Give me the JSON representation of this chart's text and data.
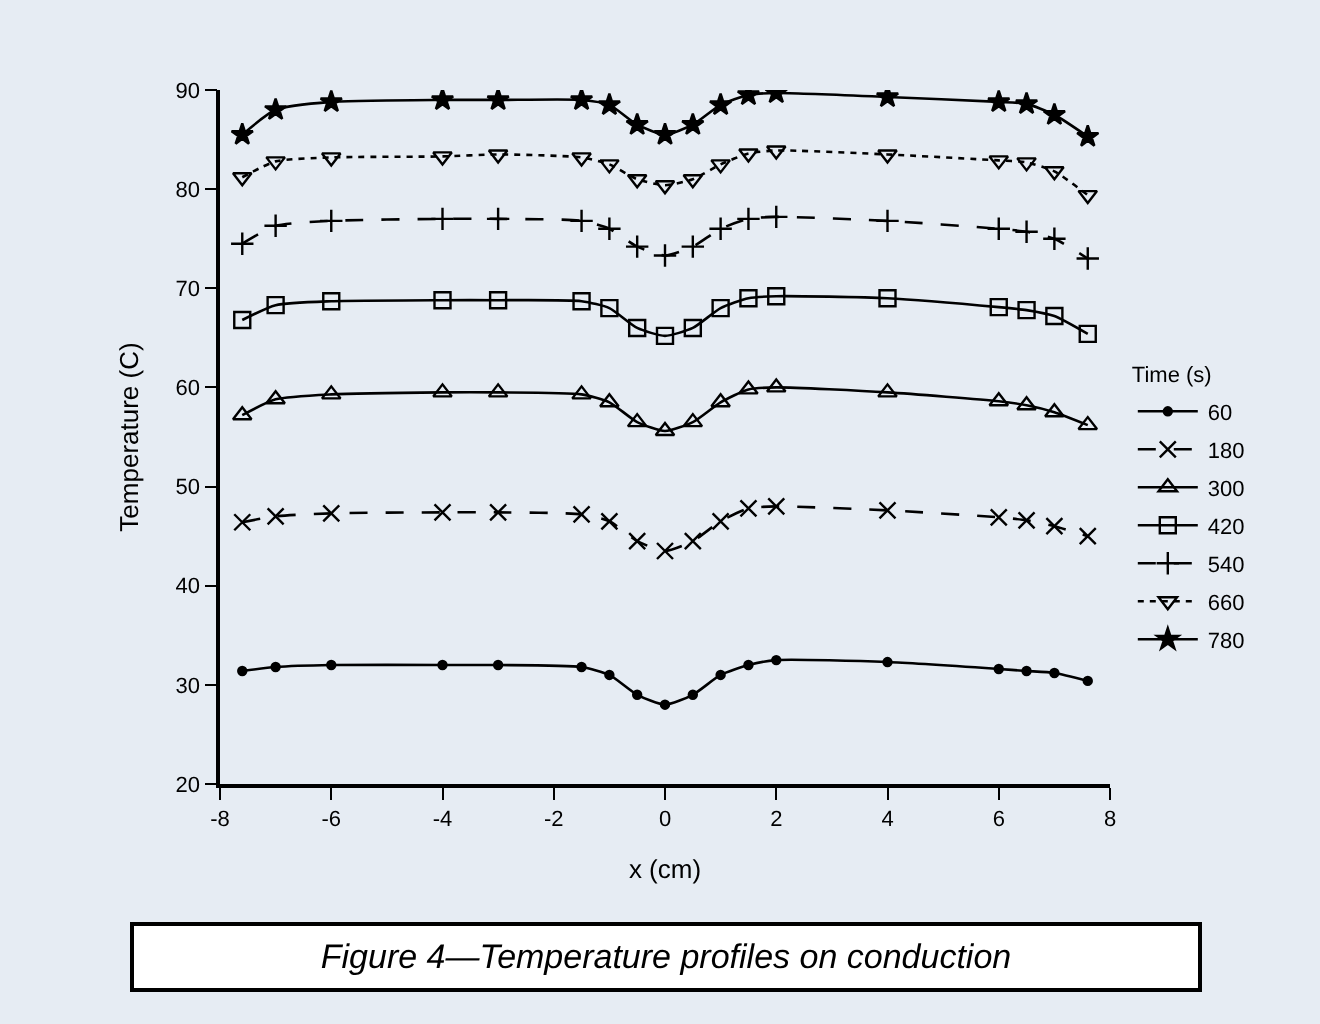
{
  "chart_data": {
    "type": "line",
    "xlabel": "x (cm)",
    "ylabel": "Temperature (C)",
    "legend_title": "Time (s)",
    "x": [
      -7.6,
      -7,
      -6,
      -4,
      -3,
      -1.5,
      -1,
      -0.5,
      0,
      0.5,
      1,
      1.5,
      2,
      4,
      6,
      6.5,
      7,
      7.6
    ],
    "xlim": [
      -8,
      8
    ],
    "xticks": [
      -8,
      -6,
      -4,
      -2,
      0,
      2,
      4,
      6,
      8
    ],
    "ylim": [
      20,
      90
    ],
    "yticks": [
      20,
      30,
      40,
      50,
      60,
      70,
      80,
      90
    ],
    "grid": false,
    "legend": "right",
    "annotations": [
      "Figure 4—Temperature profiles on conduction"
    ],
    "series": [
      {
        "name": "60",
        "color": "#000000",
        "marker": "circle",
        "line_style": "solid",
        "values": [
          31.4,
          31.8,
          32,
          32,
          32,
          31.8,
          31,
          29,
          28,
          29,
          31,
          32,
          32.5,
          32.3,
          31.6,
          31.4,
          31.2,
          30.4
        ]
      },
      {
        "name": "180",
        "color": "#000000",
        "marker": "x",
        "line_style": "dashed",
        "values": [
          46.4,
          47,
          47.3,
          47.4,
          47.4,
          47.2,
          46.5,
          44.5,
          43.5,
          44.5,
          46.5,
          47.8,
          48,
          47.6,
          46.9,
          46.6,
          46,
          45
        ]
      },
      {
        "name": "300",
        "color": "#000000",
        "marker": "triangle",
        "line_style": "solid",
        "values": [
          57.2,
          58.8,
          59.3,
          59.5,
          59.5,
          59.3,
          58.5,
          56.5,
          55.6,
          56.5,
          58.5,
          59.8,
          60,
          59.5,
          58.6,
          58.2,
          57.5,
          56.2
        ]
      },
      {
        "name": "420",
        "color": "#000000",
        "marker": "square",
        "line_style": "solid",
        "values": [
          66.8,
          68.3,
          68.7,
          68.8,
          68.8,
          68.7,
          68,
          66,
          65.2,
          66,
          68,
          69,
          69.2,
          69,
          68.1,
          67.8,
          67.2,
          65.4
        ]
      },
      {
        "name": "540",
        "color": "#000000",
        "marker": "cross",
        "line_style": "dashed",
        "values": [
          74.5,
          76.3,
          76.8,
          77,
          77,
          76.8,
          76,
          74.2,
          73.3,
          74.2,
          76,
          77,
          77.2,
          76.8,
          76,
          75.7,
          75,
          73
        ]
      },
      {
        "name": "660",
        "color": "#000000",
        "marker": "triangle-down",
        "line_style": "dotted",
        "values": [
          81.2,
          82.8,
          83.2,
          83.3,
          83.5,
          83.2,
          82.5,
          81,
          80.4,
          81,
          82.5,
          83.6,
          83.9,
          83.5,
          82.9,
          82.7,
          81.8,
          79.4
        ]
      },
      {
        "name": "780",
        "color": "#000000",
        "marker": "star",
        "line_style": "solid",
        "values": [
          85.5,
          88,
          88.8,
          89,
          89,
          89,
          88.5,
          86.5,
          85.5,
          86.5,
          88.5,
          89.5,
          89.7,
          89.3,
          88.8,
          88.6,
          87.5,
          85.3
        ]
      }
    ]
  }
}
